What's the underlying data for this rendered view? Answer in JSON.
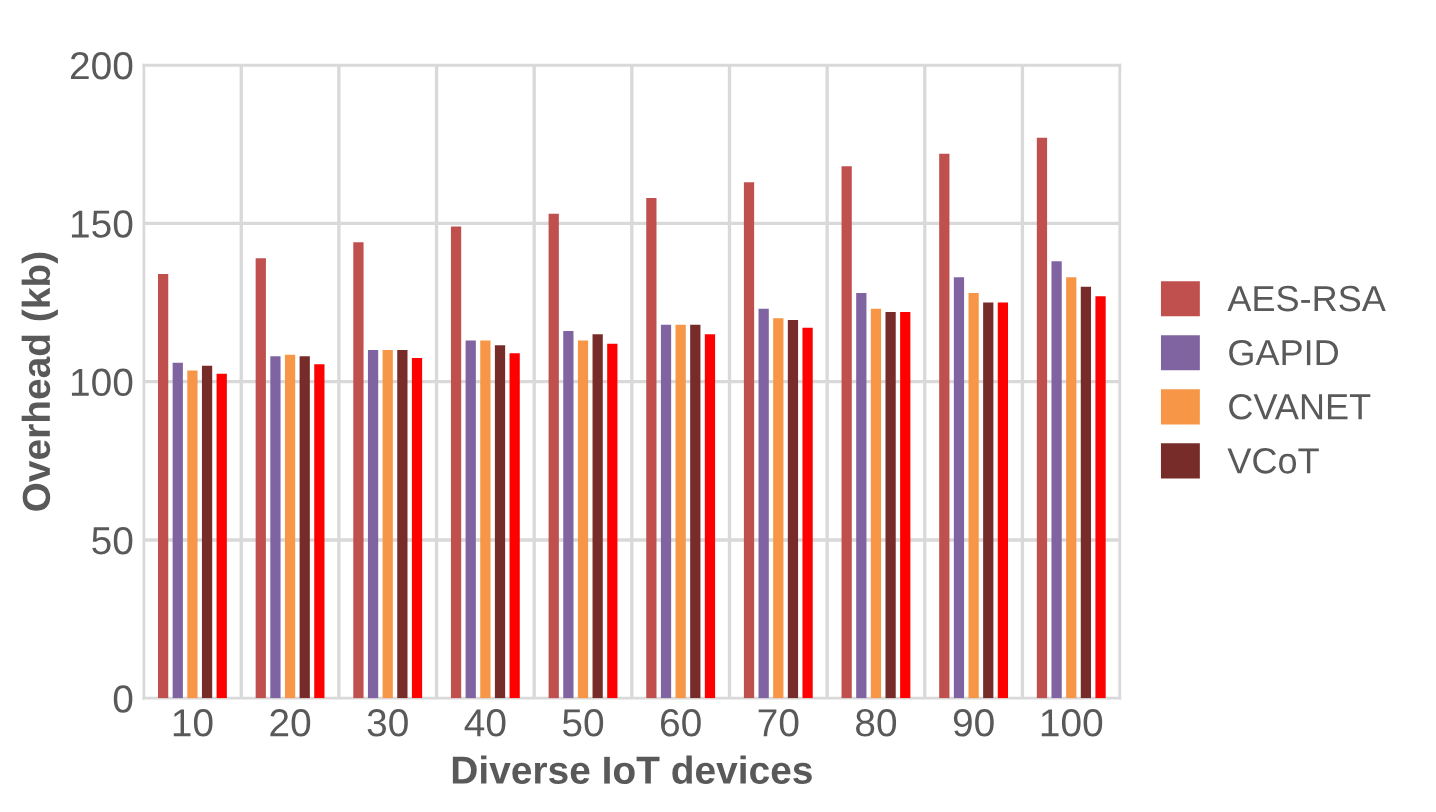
{
  "chart_data": {
    "type": "bar",
    "xlabel": "Diverse IoT devices",
    "ylabel": "Overhead (kb)",
    "categories": [
      "10",
      "20",
      "30",
      "40",
      "50",
      "60",
      "70",
      "80",
      "90",
      "100"
    ],
    "series": [
      {
        "name": "AES-RSA",
        "color": "#c0504d",
        "values": [
          134,
          139,
          144,
          149,
          153,
          158,
          163,
          168,
          172,
          177
        ]
      },
      {
        "name": "GAPID",
        "color": "#8064a2",
        "values": [
          106,
          108,
          110,
          113,
          116,
          118,
          123,
          128,
          133,
          138
        ]
      },
      {
        "name": "CVANET",
        "color": "#f79646",
        "values": [
          103.5,
          108.5,
          110,
          113,
          113,
          118,
          120,
          123,
          128,
          133
        ]
      },
      {
        "name": "VCoT",
        "color": "#772c2a",
        "values": [
          105,
          108,
          110,
          111.5,
          115,
          118,
          119.5,
          122,
          125,
          130
        ]
      },
      {
        "color": "#ff0000",
        "values": [
          102.5,
          105.5,
          107.5,
          109,
          112,
          115,
          117,
          122,
          125,
          127
        ]
      }
    ],
    "ylim": [
      0,
      200
    ],
    "yticks": [
      0,
      50,
      100,
      150,
      200
    ],
    "grid": true,
    "legend": "right"
  }
}
